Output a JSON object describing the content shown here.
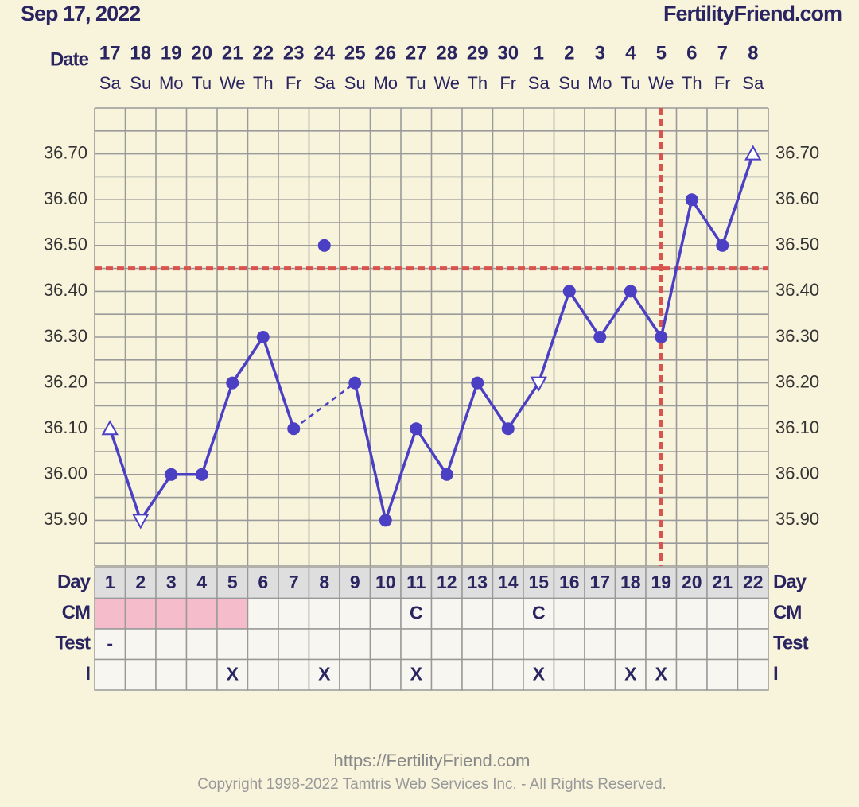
{
  "header": {
    "date": "Sep 17, 2022",
    "site": "FertilityFriend.com"
  },
  "chart_data": {
    "type": "line",
    "row_labels": {
      "date": "Date",
      "day": "Day",
      "cm": "CM",
      "test": "Test",
      "i": "I"
    },
    "dates": [
      "17",
      "18",
      "19",
      "20",
      "21",
      "22",
      "23",
      "24",
      "25",
      "26",
      "27",
      "28",
      "29",
      "30",
      "1",
      "2",
      "3",
      "4",
      "5",
      "6",
      "7",
      "8"
    ],
    "weekdays": [
      "Sa",
      "Su",
      "Mo",
      "Tu",
      "We",
      "Th",
      "Fr",
      "Sa",
      "Su",
      "Mo",
      "Tu",
      "We",
      "Th",
      "Fr",
      "Sa",
      "Su",
      "Mo",
      "Tu",
      "We",
      "Th",
      "Fr",
      "Sa"
    ],
    "days": [
      1,
      2,
      3,
      4,
      5,
      6,
      7,
      8,
      9,
      10,
      11,
      12,
      13,
      14,
      15,
      16,
      17,
      18,
      19,
      20,
      21,
      22
    ],
    "values": [
      36.1,
      35.9,
      36.0,
      36.0,
      36.2,
      36.3,
      36.1,
      null,
      36.2,
      35.9,
      36.1,
      36.0,
      36.2,
      36.1,
      36.2,
      36.4,
      36.3,
      36.4,
      36.3,
      36.6,
      36.5,
      36.7
    ],
    "markers": [
      "triangle-up",
      "triangle-down",
      "dot",
      "dot",
      "dot",
      "dot",
      "dot",
      null,
      "dot",
      "dot",
      "dot",
      "dot",
      "dot",
      "dot",
      "triangle-down",
      "dot",
      "dot",
      "dot",
      "dot",
      "dot",
      "dot",
      "triangle-up"
    ],
    "discarded_values": [
      null,
      null,
      null,
      null,
      null,
      null,
      null,
      36.5,
      null,
      null,
      null,
      null,
      null,
      null,
      null,
      null,
      null,
      null,
      null,
      null,
      null,
      null
    ],
    "gap_style": "dashed",
    "color": "#4b3fc4",
    "ylim": [
      35.8,
      36.8
    ],
    "yticks": [
      {
        "value": 35.9,
        "label": "35.90"
      },
      {
        "value": 36.0,
        "label": "36.00"
      },
      {
        "value": 36.1,
        "label": "36.10"
      },
      {
        "value": 36.2,
        "label": "36.20"
      },
      {
        "value": 36.3,
        "label": "36.30"
      },
      {
        "value": 36.4,
        "label": "36.40"
      },
      {
        "value": 36.5,
        "label": "36.50"
      },
      {
        "value": 36.6,
        "label": "36.60"
      },
      {
        "value": 36.7,
        "label": "36.70"
      }
    ],
    "minor_yticks": [
      35.8,
      35.85,
      35.95,
      36.05,
      36.15,
      36.25,
      36.35,
      36.45,
      36.55,
      36.65,
      36.75,
      36.8
    ],
    "grid": true,
    "coverline": 36.45,
    "ovulation_day": 19,
    "marker_line_color": "#d9534f",
    "period_days": [
      1,
      2,
      3,
      4,
      5
    ],
    "period_color": "#f5bccb",
    "cm": [
      null,
      null,
      null,
      null,
      null,
      null,
      null,
      null,
      null,
      null,
      "C",
      null,
      null,
      null,
      "C",
      null,
      null,
      null,
      null,
      null,
      null,
      null
    ],
    "test": [
      "-",
      null,
      null,
      null,
      null,
      null,
      null,
      null,
      null,
      null,
      null,
      null,
      null,
      null,
      null,
      null,
      null,
      null,
      null,
      null,
      null,
      null
    ],
    "intercourse": [
      null,
      null,
      null,
      null,
      "X",
      null,
      null,
      "X",
      null,
      null,
      "X",
      null,
      null,
      null,
      "X",
      null,
      null,
      "X",
      "X",
      null,
      null,
      null
    ]
  },
  "footer": {
    "url": "https://FertilityFriend.com",
    "copyright": "Copyright 1998-2022 Tamtris Web Services Inc. - All Rights Reserved."
  }
}
